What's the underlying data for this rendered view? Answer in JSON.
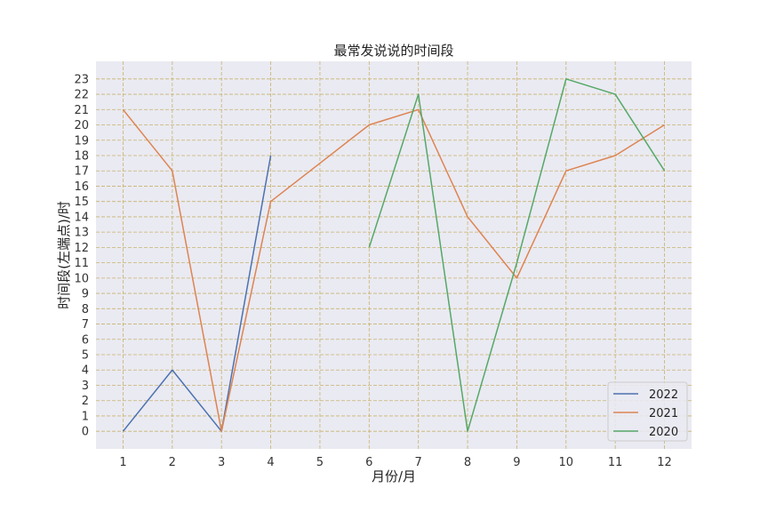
{
  "chart_data": {
    "type": "line",
    "title": "最常发说说的时间段",
    "xlabel": "月份/月",
    "ylabel": "时间段(左端点)/时",
    "x": [
      1,
      2,
      3,
      4,
      5,
      6,
      7,
      8,
      9,
      10,
      11,
      12
    ],
    "xlim": [
      0.45,
      12.55
    ],
    "ylim": [
      -1.15,
      24.15
    ],
    "yticks": [
      0,
      1,
      2,
      3,
      4,
      5,
      6,
      7,
      8,
      9,
      10,
      11,
      12,
      13,
      14,
      15,
      16,
      17,
      18,
      19,
      20,
      21,
      22,
      23
    ],
    "grid": true,
    "legend_position": "lower-right",
    "series": [
      {
        "name": "2022",
        "color": "#4c72b0",
        "points": [
          [
            1,
            0
          ],
          [
            2,
            4
          ],
          [
            3,
            0
          ],
          [
            4,
            18
          ]
        ]
      },
      {
        "name": "2021",
        "color": "#dd8452",
        "points": [
          [
            1,
            21
          ],
          [
            2,
            17
          ],
          [
            3,
            0
          ],
          [
            4,
            15
          ],
          [
            6,
            20
          ],
          [
            7,
            21
          ],
          [
            8,
            14
          ],
          [
            9,
            10
          ],
          [
            10,
            17
          ],
          [
            11,
            18
          ],
          [
            12,
            20
          ]
        ]
      },
      {
        "name": "2020",
        "color": "#55a868",
        "points": [
          [
            6,
            12
          ],
          [
            7,
            22
          ],
          [
            8,
            0
          ],
          [
            9,
            11
          ],
          [
            10,
            23
          ],
          [
            11,
            22
          ],
          [
            12,
            17
          ]
        ]
      }
    ]
  },
  "colors": {
    "plot_background": "#eaeaf2",
    "grid": "#c8b46e"
  }
}
